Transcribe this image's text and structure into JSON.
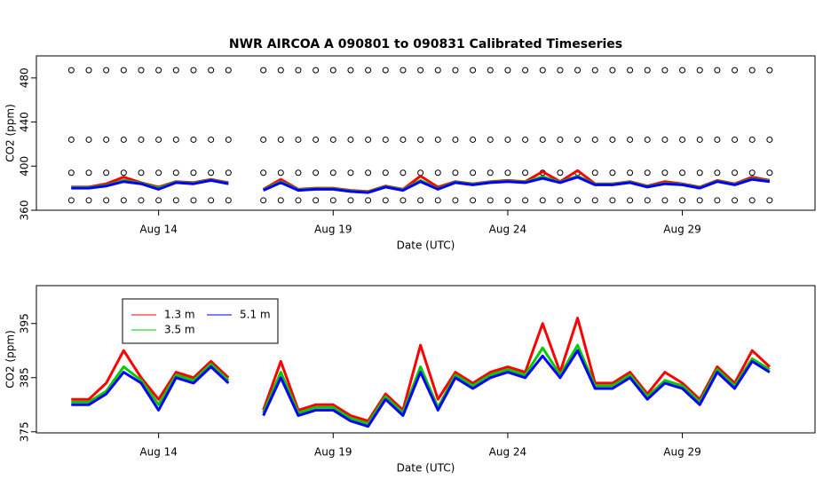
{
  "chart_data": [
    {
      "type": "line",
      "title": "NWR   AIRCOA  A    090801  to  090831   Calibrated Timeseries",
      "xlabel": "Date (UTC)",
      "ylabel": "CO2 (ppm)",
      "x": [
        11.5,
        12,
        12.5,
        13,
        13.5,
        14,
        14.5,
        15,
        15.5,
        16,
        16.5,
        17,
        17.5,
        18,
        18.5,
        19,
        19.5,
        20,
        20.5,
        21,
        21.5,
        22,
        22.5,
        23,
        23.5,
        24,
        24.5,
        25,
        25.5,
        26,
        26.5,
        27,
        27.5,
        28,
        28.5,
        29,
        29.5,
        30,
        30.5,
        31,
        31.5
      ],
      "xlim": [
        10.5,
        32.8
      ],
      "ylim": [
        360,
        500
      ],
      "xticks": [
        {
          "value": 14,
          "label": "Aug 14"
        },
        {
          "value": 19,
          "label": "Aug 19"
        },
        {
          "value": 24,
          "label": "Aug 24"
        },
        {
          "value": 29,
          "label": "Aug 29"
        }
      ],
      "yticks": [
        360,
        400,
        440,
        480
      ],
      "series": [
        {
          "color": "#000000",
          "marker": "circle",
          "values": [
            369,
            369,
            369,
            369,
            369,
            369,
            369,
            369,
            369,
            369,
            null,
            369,
            369,
            369,
            369,
            369,
            369,
            369,
            369,
            369,
            369,
            369,
            369,
            369,
            369,
            369,
            369,
            369,
            369,
            369,
            369,
            369,
            369,
            369,
            369,
            369,
            369,
            369,
            369,
            369,
            369
          ]
        },
        {
          "color": "#000000",
          "marker": "circle",
          "values": [
            394,
            394,
            394,
            394,
            394,
            394,
            394,
            394,
            394,
            394,
            null,
            394,
            394,
            394,
            394,
            394,
            394,
            394,
            394,
            394,
            394,
            394,
            394,
            394,
            394,
            394,
            394,
            394,
            394,
            394,
            394,
            394,
            394,
            394,
            394,
            394,
            394,
            394,
            394,
            394,
            394
          ]
        },
        {
          "color": "#000000",
          "marker": "circle",
          "values": [
            424,
            424,
            424,
            424,
            424,
            424,
            424,
            424,
            424,
            424,
            null,
            424,
            424,
            424,
            424,
            424,
            424,
            424,
            424,
            424,
            424,
            424,
            424,
            424,
            424,
            424,
            424,
            424,
            424,
            424,
            424,
            424,
            424,
            424,
            424,
            424,
            424,
            424,
            424,
            424,
            424
          ]
        },
        {
          "color": "#000000",
          "marker": "circle",
          "values": [
            487,
            487,
            487,
            487,
            487,
            487,
            487,
            487,
            487,
            487,
            null,
            487,
            487,
            487,
            487,
            487,
            487,
            487,
            487,
            487,
            487,
            487,
            487,
            487,
            487,
            487,
            487,
            487,
            487,
            487,
            487,
            487,
            487,
            487,
            487,
            487,
            487,
            487,
            487,
            487,
            487
          ]
        },
        {
          "color": "#ff0000",
          "marker": "line",
          "values": [
            381,
            381,
            384,
            390,
            385,
            381,
            386,
            385,
            388,
            385,
            null,
            379,
            388,
            379,
            380,
            380,
            378,
            377,
            382,
            379,
            391,
            381,
            386,
            384,
            386,
            387,
            386,
            395,
            386,
            396,
            384,
            384,
            386,
            382,
            386,
            384,
            381,
            387,
            384,
            390,
            387
          ]
        },
        {
          "color": "#00cc00",
          "marker": "line",
          "values": [
            380.5,
            380.5,
            382.5,
            387,
            384.5,
            380,
            385.5,
            384.5,
            387.5,
            384.5,
            null,
            378.5,
            386,
            378.5,
            379.5,
            379.5,
            377.5,
            376.5,
            381.5,
            378.5,
            387,
            379.5,
            385.5,
            383.5,
            385.5,
            386.5,
            385.5,
            390.5,
            385.5,
            391,
            383.5,
            383.5,
            385.5,
            381.5,
            384.5,
            383.5,
            380.5,
            386.5,
            383.5,
            388.5,
            386.5
          ]
        },
        {
          "color": "#0000ff",
          "marker": "line",
          "values": [
            380,
            380,
            382,
            386,
            384,
            379,
            385,
            384,
            387,
            384,
            null,
            378,
            385,
            378,
            379,
            379,
            377,
            376,
            381,
            378,
            386,
            379,
            385,
            383,
            385,
            386,
            385,
            389,
            385,
            390,
            383,
            383,
            385,
            381,
            384,
            383,
            380,
            386,
            383,
            388,
            386
          ]
        }
      ]
    },
    {
      "type": "line",
      "xlabel": "Date (UTC)",
      "ylabel": "CO2 (ppm)",
      "legend": "top-left",
      "x": [
        11.5,
        12,
        12.5,
        13,
        13.5,
        14,
        14.5,
        15,
        15.5,
        16,
        16.5,
        17,
        17.5,
        18,
        18.5,
        19,
        19.5,
        20,
        20.5,
        21,
        21.5,
        22,
        22.5,
        23,
        23.5,
        24,
        24.5,
        25,
        25.5,
        26,
        26.5,
        27,
        27.5,
        28,
        28.5,
        29,
        29.5,
        30,
        30.5,
        31,
        31.5
      ],
      "xlim": [
        10.5,
        32.8
      ],
      "ylim": [
        374.8,
        402
      ],
      "xticks": [
        {
          "value": 14,
          "label": "Aug 14"
        },
        {
          "value": 19,
          "label": "Aug 19"
        },
        {
          "value": 24,
          "label": "Aug 24"
        },
        {
          "value": 29,
          "label": "Aug 29"
        }
      ],
      "yticks": [
        375,
        385,
        395
      ],
      "series": [
        {
          "name": "1.3 m",
          "color": "#ff0000",
          "marker": "line",
          "values": [
            381,
            381,
            384,
            390,
            385,
            381,
            386,
            385,
            388,
            385,
            null,
            379,
            388,
            379,
            380,
            380,
            378,
            377,
            382,
            379,
            391,
            381,
            386,
            384,
            386,
            387,
            386,
            395,
            386,
            396,
            384,
            384,
            386,
            382,
            386,
            384,
            381,
            387,
            384,
            390,
            387
          ]
        },
        {
          "name": "3.5 m",
          "color": "#00cc00",
          "marker": "line",
          "values": [
            380.5,
            380.5,
            382.5,
            387,
            384.5,
            380,
            385.5,
            384.5,
            387.5,
            384.5,
            null,
            378.5,
            386,
            378.5,
            379.5,
            379.5,
            377.5,
            376.5,
            381.5,
            378.5,
            387,
            379.5,
            385.5,
            383.5,
            385.5,
            386.5,
            385.5,
            390.5,
            385.5,
            391,
            383.5,
            383.5,
            385.5,
            381.5,
            384.5,
            383.5,
            380.5,
            386.5,
            383.5,
            388.5,
            386.5
          ]
        },
        {
          "name": "5.1 m",
          "color": "#0000ff",
          "marker": "line",
          "values": [
            380,
            380,
            382,
            386,
            384,
            379,
            385,
            384,
            387,
            384,
            null,
            378,
            385,
            378,
            379,
            379,
            377,
            376,
            381,
            378,
            386,
            379,
            385,
            383,
            385,
            386,
            385,
            389,
            385,
            390,
            383,
            383,
            385,
            381,
            384,
            383,
            380,
            386,
            383,
            388,
            386
          ]
        }
      ]
    }
  ]
}
